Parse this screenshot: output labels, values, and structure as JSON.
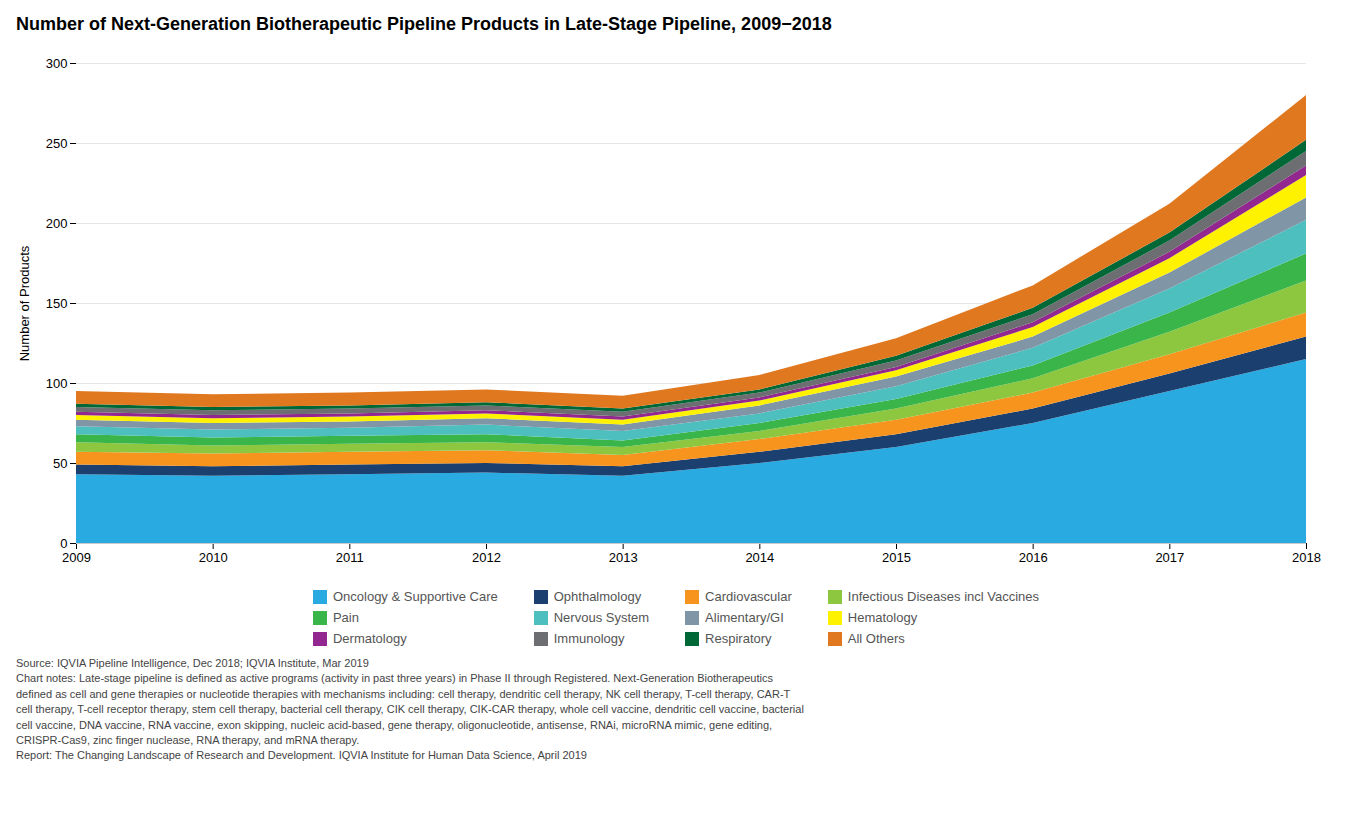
{
  "chart_data": {
    "type": "area",
    "stacked": true,
    "title": "Number of Next-Generation Biotherapeutic Pipeline Products in Late-Stage Pipeline, 2009−2018",
    "ylabel": "Number of Products",
    "x": [
      2009,
      2010,
      2011,
      2012,
      2013,
      2014,
      2015,
      2016,
      2017,
      2018
    ],
    "series": [
      {
        "name": "Oncology & Supportive Care",
        "color": "#29ABE2",
        "values": [
          43,
          42,
          43,
          44,
          42,
          50,
          60,
          75,
          95,
          115
        ]
      },
      {
        "name": "Ophthalmology",
        "color": "#1B3F6E",
        "values": [
          6,
          6,
          6,
          6,
          6,
          7,
          8,
          9,
          11,
          14
        ]
      },
      {
        "name": "Cardiovascular",
        "color": "#F7941D",
        "values": [
          8,
          8,
          8,
          8,
          7,
          8,
          9,
          10,
          12,
          15
        ]
      },
      {
        "name": "Infectious Diseases incl Vaccines",
        "color": "#8DC63F",
        "values": [
          6,
          5,
          5,
          5,
          5,
          5,
          7,
          9,
          14,
          20
        ]
      },
      {
        "name": "Pain",
        "color": "#39B54A",
        "values": [
          5,
          5,
          5,
          5,
          4,
          5,
          6,
          8,
          12,
          17
        ]
      },
      {
        "name": "Nervous System",
        "color": "#4DBFBF",
        "values": [
          5,
          5,
          5,
          6,
          6,
          6,
          8,
          11,
          15,
          21
        ]
      },
      {
        "name": "Alimentary/GI",
        "color": "#8096A7",
        "values": [
          4,
          4,
          4,
          4,
          4,
          5,
          6,
          7,
          10,
          14
        ]
      },
      {
        "name": "Hematology",
        "color": "#FFF200",
        "values": [
          3,
          3,
          3,
          3,
          3,
          3,
          4,
          6,
          9,
          14
        ]
      },
      {
        "name": "Dermatology",
        "color": "#92278F",
        "values": [
          2,
          2,
          2,
          2,
          2,
          2,
          2,
          3,
          4,
          6
        ]
      },
      {
        "name": "Immunology",
        "color": "#6D6E71",
        "values": [
          3,
          3,
          3,
          3,
          3,
          3,
          4,
          5,
          7,
          9
        ]
      },
      {
        "name": "Respiratory",
        "color": "#006837",
        "values": [
          2,
          2,
          2,
          2,
          2,
          2,
          3,
          4,
          5,
          7
        ]
      },
      {
        "name": "All Others",
        "color": "#E07820",
        "values": [
          8,
          8,
          8,
          8,
          8,
          9,
          11,
          14,
          18,
          28
        ]
      }
    ],
    "xlim": [
      2009,
      2018
    ],
    "xticks": [
      2009,
      2010,
      2011,
      2012,
      2013,
      2014,
      2015,
      2016,
      2017,
      2018
    ],
    "ylim": [
      0,
      300
    ],
    "yticks": [
      0,
      50,
      100,
      150,
      200,
      250,
      300
    ],
    "grid": true,
    "legend": "bottom",
    "caption": "Source: IQVIA Pipeline Intelligence, Dec 2018; IQVIA Institute, Mar 2019\nChart notes: Late-stage pipeline is defined as active programs (activity in past three years) in Phase II through Registered. Next-Generation Biotherapeutics\ndefined as cell and gene therapies or nucleotide therapies with mechanisms including: cell therapy, dendritic cell therapy, NK cell therapy, T-cell therapy, CAR-T\ncell therapy, T-cell receptor therapy, stem cell therapy, bacterial cell therapy, CIK cell therapy, CIK-CAR therapy, whole cell vaccine, dendritic cell vaccine, bacterial\ncell vaccine, DNA vaccine, RNA vaccine, exon skipping, nucleic acid-based, gene therapy, oligonucleotide, antisense, RNAi, microRNA mimic, gene editing,\nCRISPR-Cas9, zinc finger nuclease, RNA therapy, and mRNA therapy.\nReport: The Changing Landscape of Research and Development. IQVIA Institute for Human Data Science, April 2019"
  }
}
